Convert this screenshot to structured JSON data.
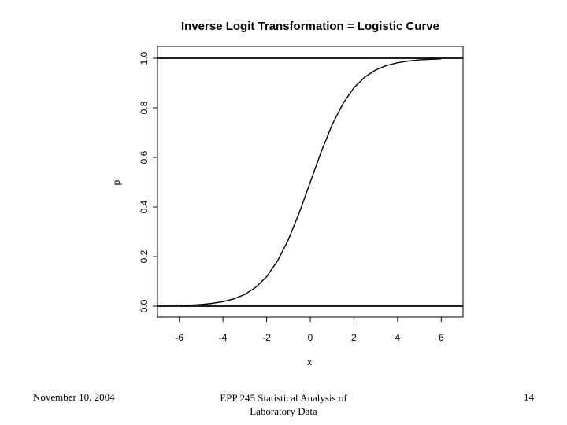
{
  "footer": {
    "date": "November 10, 2004",
    "title_line1": "EPP 245 Statistical Analysis of",
    "title_line2": "Laboratory Data",
    "page_number": "14"
  },
  "chart_data": {
    "type": "line",
    "title": "Inverse Logit Transformation = Logistic Curve",
    "xlabel": "x",
    "ylabel": "p",
    "xlim": [
      -7,
      7
    ],
    "ylim": [
      0,
      1
    ],
    "x_ticks": [
      -6,
      -4,
      -2,
      0,
      2,
      4,
      6
    ],
    "x_tick_labels": [
      "-6",
      "-4",
      "-2",
      "0",
      "2",
      "4",
      "6"
    ],
    "y_ticks": [
      0.0,
      0.2,
      0.4,
      0.6,
      0.8,
      1.0
    ],
    "y_tick_labels": [
      "0.0",
      "0.2",
      "0.4",
      "0.6",
      "0.8",
      "1.0"
    ],
    "grid": false,
    "series": [
      {
        "x": [
          -6,
          -5.5,
          -5,
          -4.5,
          -4,
          -3.5,
          -3,
          -2.5,
          -2,
          -1.5,
          -1,
          -0.5,
          0,
          0.5,
          1,
          1.5,
          2,
          2.5,
          3,
          3.5,
          4,
          4.5,
          5,
          5.5,
          6
        ],
        "y": [
          0.0025,
          0.0041,
          0.0067,
          0.011,
          0.018,
          0.0293,
          0.0474,
          0.0759,
          0.1192,
          0.1824,
          0.2689,
          0.3775,
          0.5,
          0.6225,
          0.7311,
          0.8176,
          0.8808,
          0.9241,
          0.9526,
          0.9707,
          0.982,
          0.989,
          0.9933,
          0.9959,
          0.9975
        ],
        "color": "#000000"
      }
    ],
    "reference_lines": [
      {
        "axis": "y",
        "value": 0
      },
      {
        "axis": "y",
        "value": 1
      }
    ]
  }
}
